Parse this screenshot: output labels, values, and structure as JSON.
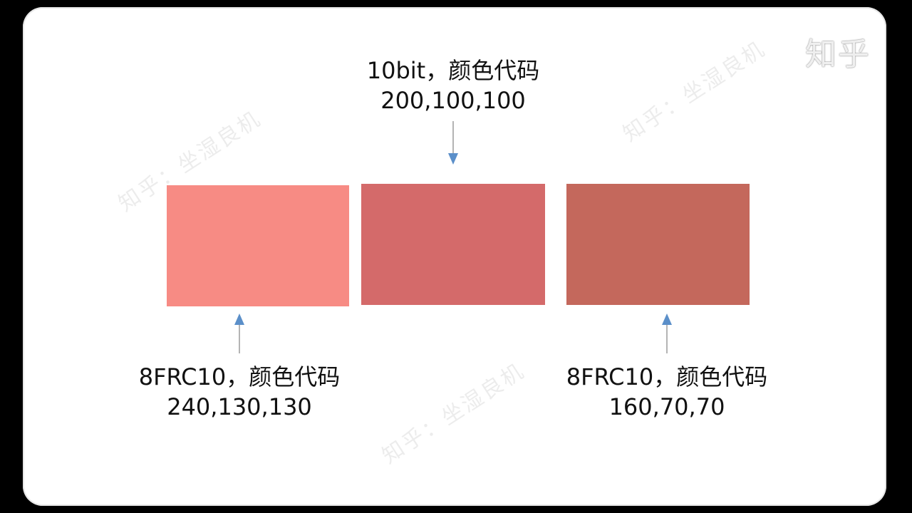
{
  "watermark_text": "知乎：坐湿良机",
  "corner_logo": "知乎",
  "top_label": {
    "title": "10bit，颜色代码",
    "code": "200,100,100"
  },
  "left_label": {
    "title": "8FRC10，颜色代码",
    "code": "240,130,130"
  },
  "right_label": {
    "title": "8FRC10，颜色代码",
    "code": "160,70,70"
  },
  "colors": {
    "swatch_left": "#F78B84",
    "swatch_middle": "#D46A6A",
    "swatch_right": "#C4685C",
    "arrow": "#5B8FC9",
    "arrow_line": "#9A9A9A"
  }
}
